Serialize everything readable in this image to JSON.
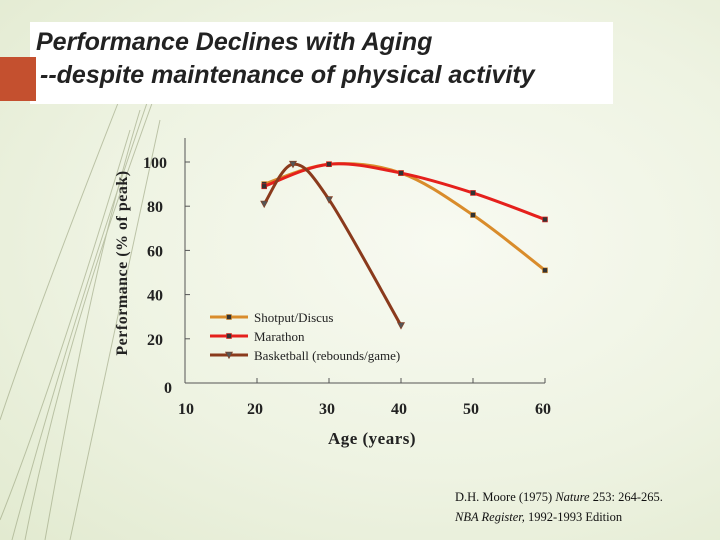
{
  "slide": {
    "title_line1": "Performance Declines with Aging",
    "title_line2": "--despite maintenance of physical activity",
    "credit1_pre": "D.H. Moore (1975) ",
    "credit1_journal": "Nature",
    "credit1_post": " 253: 264-265.",
    "credit2_journal": "NBA Register,",
    "credit2_post": " 1992-1993 Edition",
    "accent_color": "#c4502f"
  },
  "chart_data": {
    "type": "line",
    "title": "",
    "xlabel": "Age (years)",
    "ylabel": "Performance (% of peak)",
    "xlim": [
      10,
      60
    ],
    "ylim": [
      0,
      100
    ],
    "xticks": [
      10,
      20,
      30,
      40,
      50,
      60
    ],
    "yticks": [
      0,
      20,
      40,
      60,
      80,
      100
    ],
    "grid": false,
    "legend_position": "center-right",
    "series": [
      {
        "name": "Shotput/Discus",
        "color": "#d98c2b",
        "marker": "square",
        "x": [
          21,
          30,
          40,
          50,
          60
        ],
        "y": [
          90,
          99,
          95,
          76,
          51
        ]
      },
      {
        "name": "Marathon",
        "color": "#e5201c",
        "marker": "square",
        "x": [
          21,
          30,
          40,
          50,
          60
        ],
        "y": [
          89,
          99,
          95,
          86,
          74
        ]
      },
      {
        "name": "Basketball (rebounds/game)",
        "color": "#8a3a1c",
        "marker": "triangle",
        "x": [
          21,
          25,
          30,
          40
        ],
        "y": [
          81,
          99,
          83,
          26
        ]
      }
    ]
  }
}
